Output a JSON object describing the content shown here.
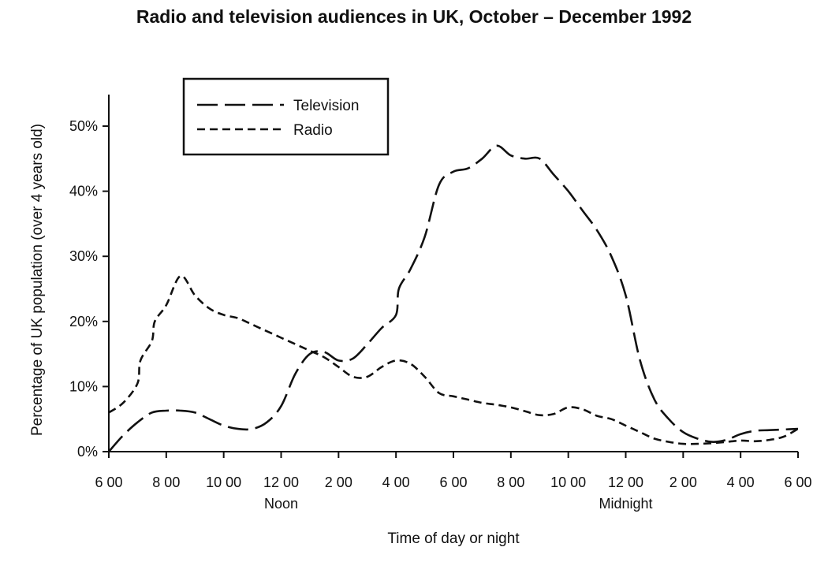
{
  "chart_data": {
    "type": "line",
    "title": "Radio and television audiences in UK, October – December 1992",
    "xlabel": "Time of day or night",
    "ylabel": "Percentage of UK population (over 4 years old)",
    "ylim": [
      0,
      55
    ],
    "yticks": [
      {
        "value": 0,
        "label": "0%"
      },
      {
        "value": 10,
        "label": "10%"
      },
      {
        "value": 20,
        "label": "20%"
      },
      {
        "value": 30,
        "label": "30%"
      },
      {
        "value": 40,
        "label": "40%"
      },
      {
        "value": 50,
        "label": "50%"
      }
    ],
    "xlim": [
      0,
      24
    ],
    "xticks": [
      {
        "value": 0,
        "label": "6 00"
      },
      {
        "value": 2,
        "label": "8 00"
      },
      {
        "value": 4,
        "label": "10 00"
      },
      {
        "value": 6,
        "label": "12 00",
        "sublabel": "Noon"
      },
      {
        "value": 8,
        "label": "2 00"
      },
      {
        "value": 10,
        "label": "4 00"
      },
      {
        "value": 12,
        "label": "6 00"
      },
      {
        "value": 14,
        "label": "8 00"
      },
      {
        "value": 16,
        "label": "10 00"
      },
      {
        "value": 18,
        "label": "12 00",
        "sublabel": "Midnight"
      },
      {
        "value": 20,
        "label": "2 00"
      },
      {
        "value": 22,
        "label": "4 00"
      },
      {
        "value": 24,
        "label": "6 00"
      }
    ],
    "legend": {
      "position": "top-left"
    },
    "grid": false,
    "series": [
      {
        "name": "Television",
        "style": "long-dash",
        "color": "#111111",
        "x": [
          0,
          0.5,
          1,
          1.5,
          2,
          2.5,
          3,
          3.5,
          4,
          4.5,
          5,
          5.5,
          6,
          6.5,
          7,
          7.5,
          8,
          8.5,
          9,
          9.5,
          10,
          10.1,
          10.5,
          11,
          11.5,
          12,
          12.5,
          13,
          13.5,
          14,
          14.5,
          15,
          15.5,
          16,
          16.5,
          17,
          17.5,
          18,
          18.5,
          19,
          19.5,
          20,
          20.5,
          21,
          21.5,
          22,
          22.5,
          23,
          23.5,
          24
        ],
        "y": [
          0,
          2.5,
          4.5,
          6,
          6.3,
          6.3,
          6,
          5,
          4,
          3.5,
          3.5,
          4.5,
          7,
          12,
          15,
          15.3,
          14,
          14.3,
          16.5,
          19,
          21,
          25,
          28,
          33,
          41,
          43,
          43.5,
          45,
          47,
          45.5,
          45,
          45,
          42.5,
          40,
          37,
          34,
          30,
          24,
          14,
          8,
          5,
          3,
          2,
          1.5,
          1.8,
          2.7,
          3.2,
          3.3,
          3.4,
          3.5
        ]
      },
      {
        "name": "Radio",
        "style": "short-dash",
        "color": "#111111",
        "x": [
          0,
          0.5,
          1,
          1.1,
          1.5,
          1.6,
          2,
          2.5,
          3,
          3.5,
          4,
          4.5,
          5,
          5.5,
          6,
          6.5,
          7,
          7.5,
          8,
          8.5,
          9,
          9.5,
          10,
          10.5,
          11,
          11.5,
          12,
          12.5,
          13,
          13.5,
          14,
          14.5,
          15,
          15.5,
          16,
          16.5,
          17,
          17.5,
          18,
          18.5,
          19,
          19.5,
          20,
          20.5,
          21,
          21.5,
          22,
          22.5,
          23,
          23.5,
          24
        ],
        "y": [
          6,
          7.5,
          10.5,
          14,
          17,
          20,
          22.5,
          27,
          24,
          22,
          21,
          20.5,
          19.5,
          18.5,
          17.5,
          16.5,
          15.5,
          14.5,
          13,
          11.5,
          11.5,
          13,
          14,
          13.5,
          11.5,
          9,
          8.5,
          8,
          7.5,
          7.2,
          6.8,
          6.2,
          5.6,
          5.8,
          6.8,
          6.5,
          5.5,
          5,
          4,
          3,
          2,
          1.5,
          1.2,
          1.2,
          1.3,
          1.5,
          1.7,
          1.6,
          1.8,
          2.3,
          3.5
        ]
      }
    ]
  }
}
